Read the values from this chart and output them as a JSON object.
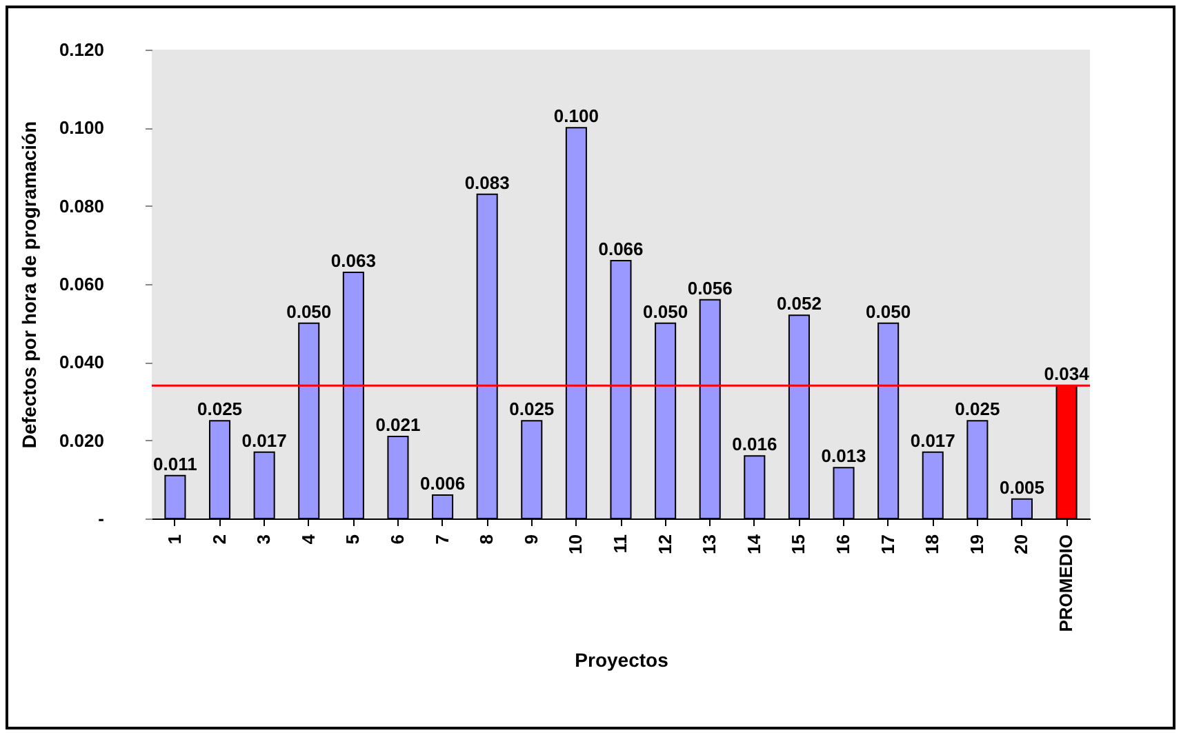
{
  "chart_data": {
    "type": "bar",
    "xlabel": "Proyectos",
    "ylabel": "Defectos por hora de programación",
    "categories": [
      "1",
      "2",
      "3",
      "4",
      "5",
      "6",
      "7",
      "8",
      "9",
      "10",
      "11",
      "12",
      "13",
      "14",
      "15",
      "16",
      "17",
      "18",
      "19",
      "20",
      "PROMEDIO"
    ],
    "values": [
      0.011,
      0.025,
      0.017,
      0.05,
      0.063,
      0.021,
      0.006,
      0.083,
      0.025,
      0.1,
      0.066,
      0.05,
      0.056,
      0.016,
      0.052,
      0.013,
      0.05,
      0.017,
      0.025,
      0.005,
      0.034
    ],
    "value_labels": [
      "0.011",
      "0.025",
      "0.017",
      "0.050",
      "0.063",
      "0.021",
      "0.006",
      "0.083",
      "0.025",
      "0.100",
      "0.066",
      "0.050",
      "0.056",
      "0.016",
      "0.052",
      "0.013",
      "0.050",
      "0.017",
      "0.025",
      "0.005",
      "0.034"
    ],
    "colors": [
      "#9999ff",
      "#9999ff",
      "#9999ff",
      "#9999ff",
      "#9999ff",
      "#9999ff",
      "#9999ff",
      "#9999ff",
      "#9999ff",
      "#9999ff",
      "#9999ff",
      "#9999ff",
      "#9999ff",
      "#9999ff",
      "#9999ff",
      "#9999ff",
      "#9999ff",
      "#9999ff",
      "#9999ff",
      "#9999ff",
      "#ff0000"
    ],
    "ylim": [
      0,
      0.12
    ],
    "yticks": [
      {
        "value": 0,
        "label": "-"
      },
      {
        "value": 0.02,
        "label": "0.020"
      },
      {
        "value": 0.04,
        "label": "0.040"
      },
      {
        "value": 0.06,
        "label": "0.060"
      },
      {
        "value": 0.08,
        "label": "0.080"
      },
      {
        "value": 0.1,
        "label": "0.100"
      },
      {
        "value": 0.12,
        "label": "0.120"
      }
    ],
    "ref_lines": [
      {
        "axis": "y",
        "value": 0.034,
        "color": "#ff0000"
      }
    ],
    "grid": false
  }
}
